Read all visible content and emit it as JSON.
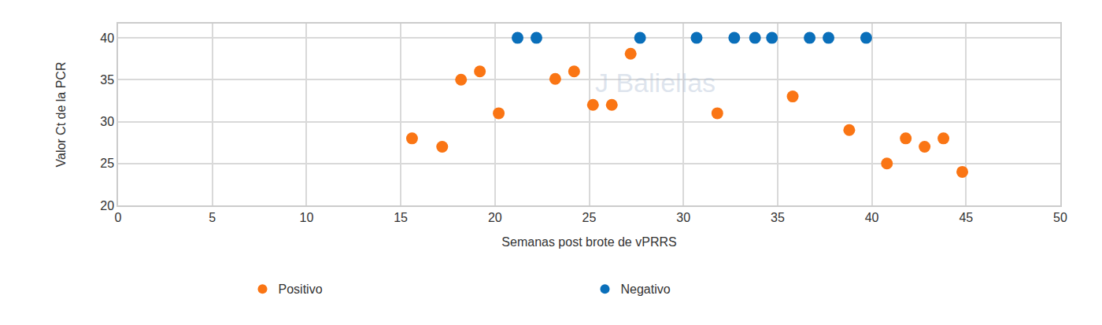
{
  "chart_data": {
    "type": "scatter",
    "x_label": "Semanas post brote de vPRRS",
    "y_label": "Valor Ct de la PCR",
    "annotations": [
      "J Baliellas"
    ],
    "series": [
      {
        "name": "Positivo",
        "color": "#fa7514",
        "marker": "circle",
        "x": [
          15.6,
          17.2,
          18.2,
          19.2,
          20.2,
          23.2,
          24.2,
          25.2,
          26.2,
          27.2,
          31.8,
          35.8,
          38.8,
          40.8,
          41.8,
          42.8,
          43.8,
          44.8
        ],
        "values": [
          28,
          27,
          35,
          36,
          31,
          35.1,
          36,
          32,
          32,
          38.1,
          31,
          33,
          29,
          25,
          28,
          27,
          28,
          24
        ]
      },
      {
        "name": "Negativo",
        "color": "#0a6fba",
        "marker": "circle",
        "x": [
          21.2,
          22.2,
          27.7,
          30.7,
          32.7,
          33.8,
          34.7,
          36.7,
          37.7,
          39.7
        ],
        "values": [
          40,
          40,
          40,
          40,
          40,
          40,
          40,
          40,
          40,
          40
        ]
      }
    ],
    "xlim": [
      0,
      50
    ],
    "xticks": [
      0,
      5,
      10,
      15,
      20,
      25,
      30,
      35,
      40,
      45,
      50
    ],
    "ylim": [
      20,
      41.7
    ],
    "yticks": [
      20,
      25,
      30,
      35,
      40
    ],
    "grid": true,
    "legend": "bottom"
  }
}
